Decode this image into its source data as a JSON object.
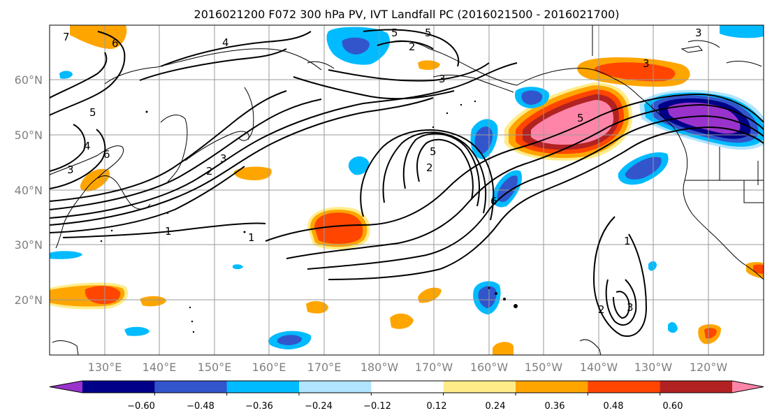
{
  "title": "2016021200 F072 300 hPa PV, IVT Landfall PC (2016021500 - 2016021700)",
  "map": {
    "lon_range": [
      120,
      250
    ],
    "lat_range": [
      10,
      70
    ],
    "lat_labels": [
      "60°N",
      "50°N",
      "40°N",
      "30°N",
      "20°N"
    ],
    "lon_labels": [
      "130°E",
      "140°E",
      "150°E",
      "160°E",
      "170°E",
      "180°W",
      "170°W",
      "160°W",
      "150°W",
      "140°W",
      "130°W",
      "120°W"
    ],
    "pv_contour_labels": [
      "7",
      "6",
      "4",
      "5",
      "5",
      "3",
      "3",
      "5",
      "6",
      "3",
      "4",
      "2",
      "3",
      "2",
      "1",
      "1",
      "5",
      "2",
      "5",
      "6",
      "1",
      "3",
      "2",
      "3"
    ]
  },
  "colorbar": {
    "colors": [
      "#9933cc",
      "#000088",
      "#3355cc",
      "#00bbff",
      "#b0e4ff",
      "#ffffff",
      "#ffec88",
      "#ffa500",
      "#ff4500",
      "#b22222",
      "#ff85a8"
    ],
    "tick_labels": [
      "−0.60",
      "−0.48",
      "−0.36",
      "−0.24",
      "−0.12",
      "0.12",
      "0.24",
      "0.36",
      "0.48",
      "0.60"
    ],
    "extend": "both"
  }
}
